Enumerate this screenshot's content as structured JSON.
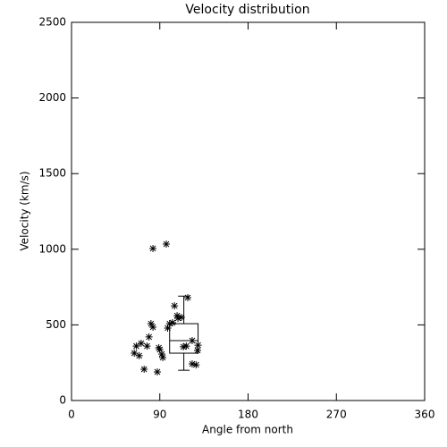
{
  "chart_data": {
    "type": "scatter",
    "title": "Velocity distribution",
    "x_label": "Angle from north",
    "y_label": "Velocity (km/s)",
    "xlim": [
      0,
      360
    ],
    "xticks": [
      0,
      90,
      180,
      270,
      360
    ],
    "ylim": [
      0,
      2500
    ],
    "yticks": [
      0,
      500,
      1000,
      1500,
      2000,
      2500
    ],
    "color": "#000000",
    "x": [
      83,
      96.6,
      105,
      118.5,
      107.6,
      64,
      66,
      69,
      71,
      74,
      77,
      79,
      81,
      83,
      87.5,
      89,
      90,
      92,
      93,
      98,
      100,
      103,
      108.5,
      112,
      114,
      117,
      123,
      123,
      127,
      128.5,
      129
    ],
    "values": [
      1005,
      1034,
      626,
      680,
      561,
      313,
      360,
      296,
      378,
      207,
      360,
      420,
      508,
      485,
      189,
      349,
      337,
      307,
      284,
      479,
      508,
      514,
      544,
      550,
      355,
      360,
      396,
      242,
      236,
      331,
      366
    ],
    "box": {
      "x_range": [
        100,
        129
      ],
      "whislo": 200,
      "q1": 313,
      "med": 396,
      "q3": 508,
      "whishi": 690
    }
  }
}
